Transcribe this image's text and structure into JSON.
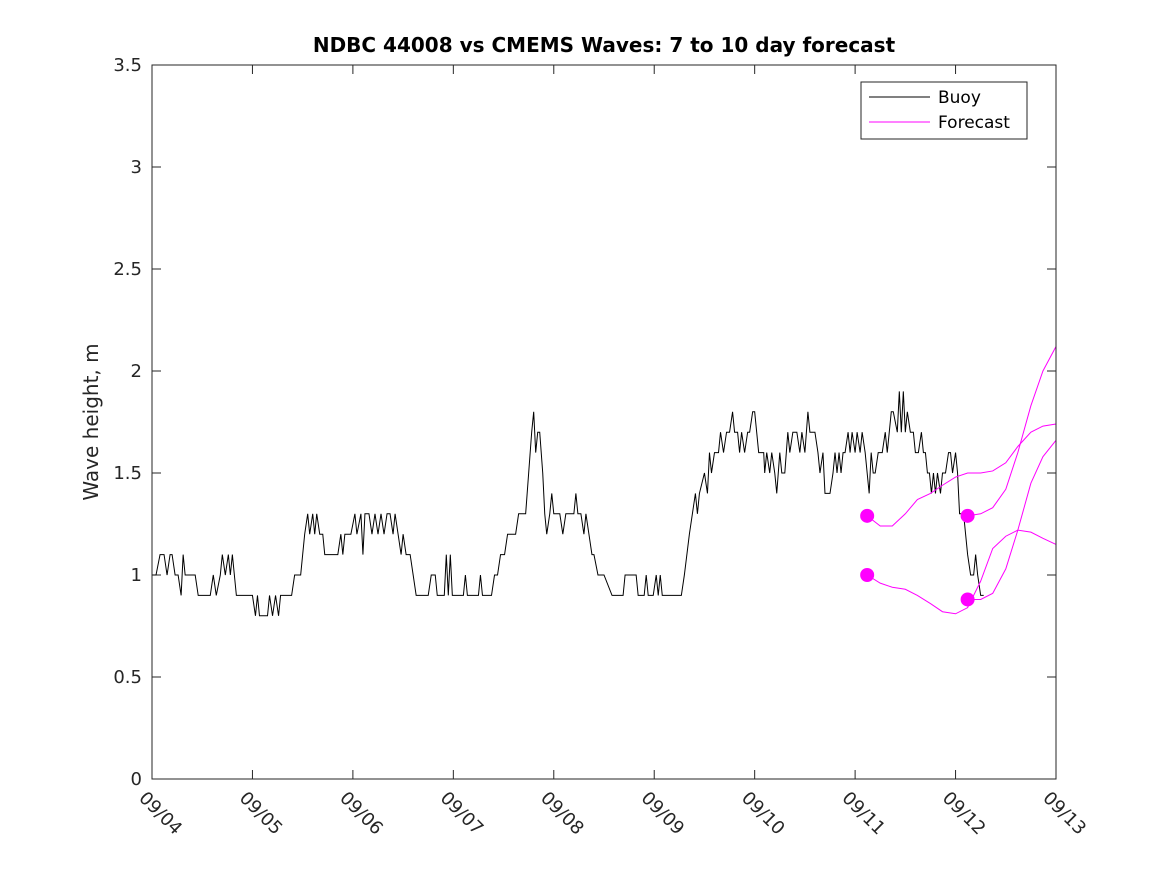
{
  "chart_data": {
    "type": "line",
    "title": "NDBC 44008 vs CMEMS Waves: 7 to 10 day forecast",
    "xlabel": "",
    "ylabel": "Wave height, m",
    "xlim": [
      0,
      9
    ],
    "ylim": [
      0,
      3.5
    ],
    "x_tick_labels": [
      "09/04",
      "09/05",
      "09/06",
      "09/07",
      "09/08",
      "09/09",
      "09/10",
      "09/11",
      "09/12",
      "09/13"
    ],
    "y_tick_labels": [
      "0",
      "0.5",
      "1",
      "1.5",
      "2",
      "2.5",
      "3",
      "3.5"
    ],
    "y_ticks": [
      0,
      0.5,
      1,
      1.5,
      2,
      2.5,
      3,
      3.5
    ],
    "x_units": "days since 09/04 00:00",
    "legend": {
      "position": "top-right",
      "entries": [
        {
          "label": "Buoy",
          "color": "#000000"
        },
        {
          "label": "Forecast",
          "color": "#ff00ff"
        }
      ]
    },
    "series": [
      {
        "name": "Buoy",
        "color": "#000000",
        "points": [
          [
            0.0,
            1.0
          ],
          [
            0.04,
            1.0
          ],
          [
            0.08,
            1.1
          ],
          [
            0.12,
            1.1
          ],
          [
            0.15,
            1.0
          ],
          [
            0.18,
            1.1
          ],
          [
            0.2,
            1.1
          ],
          [
            0.23,
            1.0
          ],
          [
            0.26,
            1.0
          ],
          [
            0.29,
            0.9
          ],
          [
            0.31,
            1.1
          ],
          [
            0.33,
            1.0
          ],
          [
            0.38,
            1.0
          ],
          [
            0.43,
            1.0
          ],
          [
            0.46,
            0.9
          ],
          [
            0.58,
            0.9
          ],
          [
            0.61,
            1.0
          ],
          [
            0.64,
            0.9
          ],
          [
            0.68,
            1.0
          ],
          [
            0.7,
            1.1
          ],
          [
            0.73,
            1.0
          ],
          [
            0.76,
            1.1
          ],
          [
            0.78,
            1.0
          ],
          [
            0.8,
            1.1
          ],
          [
            0.82,
            1.0
          ],
          [
            0.84,
            0.9
          ],
          [
            0.87,
            0.9
          ],
          [
            0.9,
            0.9
          ],
          [
            0.95,
            0.9
          ],
          [
            1.0,
            0.9
          ],
          [
            1.03,
            0.8
          ],
          [
            1.05,
            0.9
          ],
          [
            1.07,
            0.8
          ],
          [
            1.15,
            0.8
          ],
          [
            1.17,
            0.9
          ],
          [
            1.2,
            0.8
          ],
          [
            1.23,
            0.9
          ],
          [
            1.26,
            0.8
          ],
          [
            1.28,
            0.9
          ],
          [
            1.39,
            0.9
          ],
          [
            1.42,
            1.0
          ],
          [
            1.48,
            1.0
          ],
          [
            1.5,
            1.1
          ],
          [
            1.52,
            1.2
          ],
          [
            1.55,
            1.3
          ],
          [
            1.57,
            1.2
          ],
          [
            1.6,
            1.3
          ],
          [
            1.62,
            1.2
          ],
          [
            1.64,
            1.3
          ],
          [
            1.67,
            1.2
          ],
          [
            1.7,
            1.2
          ],
          [
            1.72,
            1.1
          ],
          [
            1.85,
            1.1
          ],
          [
            1.88,
            1.2
          ],
          [
            1.9,
            1.1
          ],
          [
            1.92,
            1.2
          ],
          [
            1.98,
            1.2
          ],
          [
            2.02,
            1.3
          ],
          [
            2.04,
            1.2
          ],
          [
            2.08,
            1.3
          ],
          [
            2.1,
            1.1
          ],
          [
            2.12,
            1.3
          ],
          [
            2.16,
            1.3
          ],
          [
            2.19,
            1.2
          ],
          [
            2.22,
            1.3
          ],
          [
            2.25,
            1.2
          ],
          [
            2.28,
            1.3
          ],
          [
            2.31,
            1.2
          ],
          [
            2.34,
            1.3
          ],
          [
            2.37,
            1.3
          ],
          [
            2.4,
            1.2
          ],
          [
            2.42,
            1.3
          ],
          [
            2.45,
            1.2
          ],
          [
            2.48,
            1.1
          ],
          [
            2.5,
            1.2
          ],
          [
            2.53,
            1.1
          ],
          [
            2.57,
            1.1
          ],
          [
            2.6,
            1.0
          ],
          [
            2.63,
            0.9
          ],
          [
            2.75,
            0.9
          ],
          [
            2.78,
            1.0
          ],
          [
            2.82,
            1.0
          ],
          [
            2.84,
            0.9
          ],
          [
            2.91,
            0.9
          ],
          [
            2.93,
            1.1
          ],
          [
            2.95,
            0.9
          ],
          [
            2.97,
            1.1
          ],
          [
            2.99,
            0.9
          ],
          [
            3.1,
            0.9
          ],
          [
            3.12,
            1.0
          ],
          [
            3.14,
            0.9
          ],
          [
            3.25,
            0.9
          ],
          [
            3.27,
            1.0
          ],
          [
            3.29,
            0.9
          ],
          [
            3.38,
            0.9
          ],
          [
            3.41,
            1.0
          ],
          [
            3.44,
            1.0
          ],
          [
            3.47,
            1.1
          ],
          [
            3.51,
            1.1
          ],
          [
            3.54,
            1.2
          ],
          [
            3.62,
            1.2
          ],
          [
            3.65,
            1.3
          ],
          [
            3.72,
            1.3
          ],
          [
            3.75,
            1.5
          ],
          [
            3.78,
            1.7
          ],
          [
            3.8,
            1.8
          ],
          [
            3.82,
            1.6
          ],
          [
            3.84,
            1.7
          ],
          [
            3.86,
            1.7
          ],
          [
            3.89,
            1.5
          ],
          [
            3.91,
            1.3
          ],
          [
            3.93,
            1.2
          ],
          [
            3.96,
            1.3
          ],
          [
            3.98,
            1.4
          ],
          [
            4.0,
            1.3
          ],
          [
            4.06,
            1.3
          ],
          [
            4.09,
            1.2
          ],
          [
            4.12,
            1.3
          ],
          [
            4.2,
            1.3
          ],
          [
            4.22,
            1.4
          ],
          [
            4.24,
            1.3
          ],
          [
            4.27,
            1.3
          ],
          [
            4.3,
            1.2
          ],
          [
            4.32,
            1.3
          ],
          [
            4.35,
            1.2
          ],
          [
            4.38,
            1.1
          ],
          [
            4.4,
            1.1
          ],
          [
            4.44,
            1.0
          ],
          [
            4.47,
            1.0
          ],
          [
            4.5,
            1.0
          ],
          [
            4.58,
            0.9
          ],
          [
            4.69,
            0.9
          ],
          [
            4.71,
            1.0
          ],
          [
            4.82,
            1.0
          ],
          [
            4.84,
            0.9
          ],
          [
            4.9,
            0.9
          ],
          [
            4.92,
            1.0
          ],
          [
            4.94,
            0.9
          ],
          [
            4.99,
            0.9
          ],
          [
            5.02,
            1.0
          ],
          [
            5.04,
            0.9
          ],
          [
            5.06,
            1.0
          ],
          [
            5.08,
            0.9
          ],
          [
            5.27,
            0.9
          ],
          [
            5.3,
            1.0
          ],
          [
            5.35,
            1.2
          ],
          [
            5.38,
            1.3
          ],
          [
            5.41,
            1.4
          ],
          [
            5.43,
            1.3
          ],
          [
            5.45,
            1.4
          ],
          [
            5.5,
            1.5
          ],
          [
            5.53,
            1.4
          ],
          [
            5.55,
            1.6
          ],
          [
            5.57,
            1.5
          ],
          [
            5.6,
            1.6
          ],
          [
            5.64,
            1.6
          ],
          [
            5.66,
            1.7
          ],
          [
            5.69,
            1.6
          ],
          [
            5.72,
            1.7
          ],
          [
            5.75,
            1.7
          ],
          [
            5.78,
            1.8
          ],
          [
            5.8,
            1.7
          ],
          [
            5.83,
            1.7
          ],
          [
            5.85,
            1.6
          ],
          [
            5.87,
            1.7
          ],
          [
            5.9,
            1.6
          ],
          [
            5.93,
            1.7
          ],
          [
            5.95,
            1.7
          ],
          [
            5.98,
            1.8
          ],
          [
            6.0,
            1.8
          ],
          [
            6.02,
            1.7
          ],
          [
            6.04,
            1.6
          ],
          [
            6.09,
            1.6
          ],
          [
            6.1,
            1.5
          ],
          [
            6.12,
            1.6
          ],
          [
            6.15,
            1.5
          ],
          [
            6.17,
            1.6
          ],
          [
            6.2,
            1.5
          ],
          [
            6.22,
            1.4
          ],
          [
            6.25,
            1.6
          ],
          [
            6.27,
            1.5
          ],
          [
            6.3,
            1.5
          ],
          [
            6.33,
            1.7
          ],
          [
            6.35,
            1.6
          ],
          [
            6.38,
            1.7
          ],
          [
            6.42,
            1.7
          ],
          [
            6.45,
            1.6
          ],
          [
            6.47,
            1.7
          ],
          [
            6.5,
            1.6
          ],
          [
            6.53,
            1.8
          ],
          [
            6.55,
            1.7
          ],
          [
            6.58,
            1.7
          ],
          [
            6.6,
            1.7
          ],
          [
            6.63,
            1.6
          ],
          [
            6.65,
            1.5
          ],
          [
            6.68,
            1.6
          ],
          [
            6.7,
            1.4
          ],
          [
            6.75,
            1.4
          ],
          [
            6.78,
            1.5
          ],
          [
            6.8,
            1.6
          ],
          [
            6.82,
            1.5
          ],
          [
            6.84,
            1.6
          ],
          [
            6.86,
            1.5
          ],
          [
            6.88,
            1.6
          ],
          [
            6.9,
            1.6
          ],
          [
            6.93,
            1.7
          ],
          [
            6.95,
            1.6
          ],
          [
            6.97,
            1.7
          ],
          [
            7.0,
            1.6
          ],
          [
            7.02,
            1.7
          ],
          [
            7.05,
            1.6
          ],
          [
            7.07,
            1.7
          ],
          [
            7.1,
            1.6
          ],
          [
            7.12,
            1.5
          ],
          [
            7.14,
            1.4
          ],
          [
            7.16,
            1.6
          ],
          [
            7.18,
            1.5
          ],
          [
            7.2,
            1.5
          ],
          [
            7.23,
            1.6
          ],
          [
            7.27,
            1.6
          ],
          [
            7.3,
            1.7
          ],
          [
            7.32,
            1.6
          ],
          [
            7.34,
            1.7
          ],
          [
            7.36,
            1.8
          ],
          [
            7.38,
            1.8
          ],
          [
            7.42,
            1.7
          ],
          [
            7.44,
            1.9
          ],
          [
            7.46,
            1.7
          ],
          [
            7.48,
            1.9
          ],
          [
            7.5,
            1.7
          ],
          [
            7.52,
            1.8
          ],
          [
            7.55,
            1.7
          ],
          [
            7.58,
            1.7
          ],
          [
            7.6,
            1.6
          ],
          [
            7.63,
            1.6
          ],
          [
            7.66,
            1.7
          ],
          [
            7.68,
            1.6
          ],
          [
            7.7,
            1.6
          ],
          [
            7.72,
            1.5
          ],
          [
            7.74,
            1.5
          ],
          [
            7.76,
            1.4
          ],
          [
            7.78,
            1.5
          ],
          [
            7.8,
            1.4
          ],
          [
            7.82,
            1.5
          ],
          [
            7.85,
            1.4
          ],
          [
            7.87,
            1.5
          ],
          [
            7.9,
            1.5
          ],
          [
            7.93,
            1.6
          ],
          [
            7.95,
            1.6
          ],
          [
            7.97,
            1.5
          ],
          [
            8.0,
            1.6
          ],
          [
            8.02,
            1.5
          ],
          [
            8.04,
            1.3
          ],
          [
            8.08,
            1.3
          ],
          [
            8.1,
            1.2
          ],
          [
            8.12,
            1.1
          ],
          [
            8.15,
            1.0
          ],
          [
            8.18,
            1.0
          ],
          [
            8.2,
            1.1
          ],
          [
            8.22,
            1.0
          ],
          [
            8.25,
            0.9
          ],
          [
            8.28,
            0.9
          ]
        ]
      },
      {
        "name": "Forecast",
        "color": "#ff00ff",
        "points": [
          [
            7.12,
            1.29
          ],
          [
            7.25,
            1.24
          ],
          [
            7.37,
            1.24
          ],
          [
            7.5,
            1.3
          ],
          [
            7.62,
            1.37
          ],
          [
            7.75,
            1.4
          ],
          [
            7.87,
            1.44
          ],
          [
            8.0,
            1.48
          ],
          [
            8.12,
            1.5
          ],
          [
            8.25,
            1.5
          ],
          [
            8.37,
            1.51
          ],
          [
            8.5,
            1.55
          ],
          [
            8.62,
            1.63
          ],
          [
            8.75,
            1.7
          ],
          [
            8.87,
            1.73
          ],
          [
            9.0,
            1.74
          ]
        ]
      },
      {
        "name": "Forecast",
        "color": "#ff00ff",
        "points": [
          [
            7.12,
            1.0
          ],
          [
            7.25,
            0.96
          ],
          [
            7.37,
            0.94
          ],
          [
            7.5,
            0.93
          ],
          [
            7.62,
            0.9
          ],
          [
            7.75,
            0.86
          ],
          [
            7.87,
            0.82
          ],
          [
            8.0,
            0.81
          ],
          [
            8.12,
            0.84
          ],
          [
            8.25,
            0.97
          ],
          [
            8.37,
            1.13
          ],
          [
            8.5,
            1.19
          ],
          [
            8.62,
            1.22
          ],
          [
            8.75,
            1.21
          ],
          [
            8.87,
            1.18
          ],
          [
            9.0,
            1.15
          ]
        ]
      },
      {
        "name": "Forecast",
        "color": "#ff00ff",
        "points": [
          [
            8.12,
            1.29
          ],
          [
            8.25,
            1.3
          ],
          [
            8.37,
            1.33
          ],
          [
            8.5,
            1.42
          ],
          [
            8.62,
            1.6
          ],
          [
            8.75,
            1.83
          ],
          [
            8.87,
            2.0
          ],
          [
            9.0,
            2.12
          ]
        ]
      },
      {
        "name": "Forecast",
        "color": "#ff00ff",
        "points": [
          [
            8.12,
            0.88
          ],
          [
            8.25,
            0.88
          ],
          [
            8.37,
            0.91
          ],
          [
            8.5,
            1.03
          ],
          [
            8.62,
            1.22
          ],
          [
            8.75,
            1.45
          ],
          [
            8.87,
            1.58
          ],
          [
            9.0,
            1.66
          ]
        ]
      }
    ],
    "forecast_markers": [
      [
        7.12,
        1.29
      ],
      [
        7.12,
        1.0
      ],
      [
        8.12,
        1.29
      ],
      [
        8.12,
        0.88
      ]
    ]
  }
}
